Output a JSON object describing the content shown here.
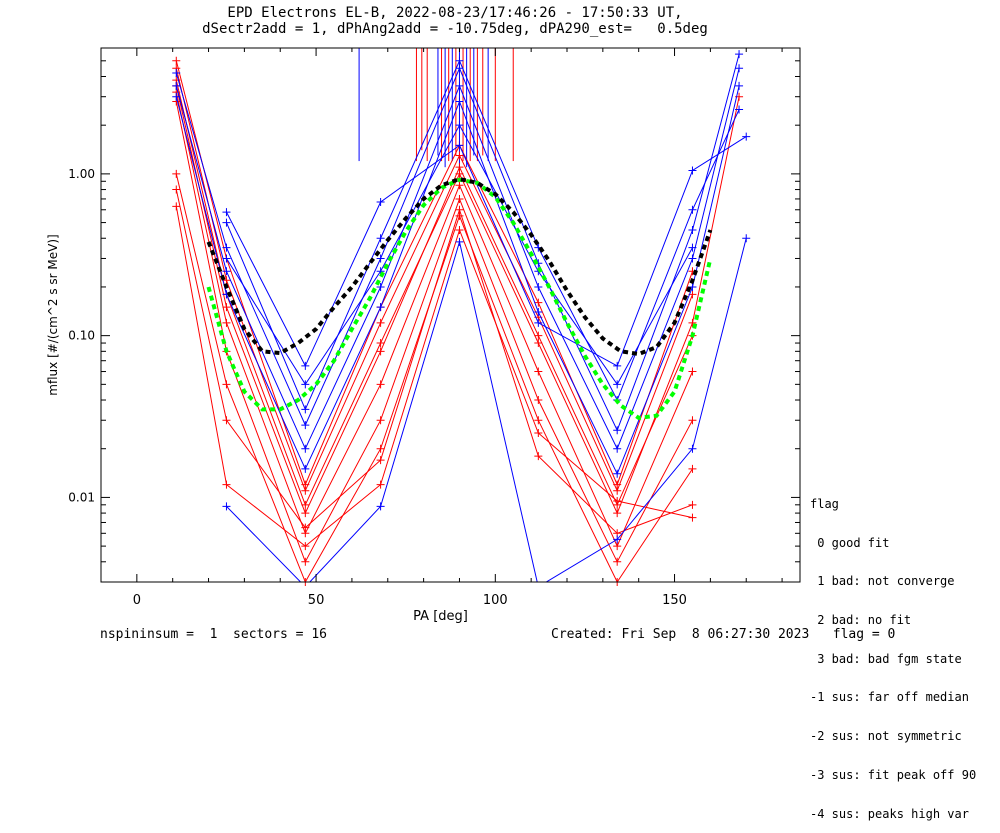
{
  "title_line1": "EPD Electrons EL-B, 2022-08-23/17:46:26 - 17:50:33 UT,",
  "title_line2": "dSectr2add = 1, dPhAng2add = -10.75deg, dPA290_est=   0.5deg",
  "legend": {
    "heading": "flag",
    "items": [
      " 0 good fit",
      " 1 bad: not converge",
      " 2 bad: no fit",
      " 3 bad: bad fgm state",
      "-1 sus: far off median",
      "-2 sus: not symmetric",
      "-3 sus: fit peak off 90",
      "-4 sus: peaks high var"
    ]
  },
  "footer_left": "nspininsum =  1  sectors = 16",
  "footer_right": "Created: Fri Sep  8 06:27:30 2023   flag = 0",
  "colors": {
    "red": "#ff0000",
    "blue": "#0000ff",
    "green": "#00ff00",
    "black": "#000000"
  },
  "chart_data": {
    "type": "line",
    "xlabel": "PA [deg]",
    "ylabel": "mflux [#/(cm^2 s sr MeV)]",
    "xlim": [
      -10,
      185
    ],
    "ylim": [
      0.003,
      6.0
    ],
    "yscale": "log",
    "xticks": [
      0,
      50,
      100,
      150
    ],
    "xtick_labels": [
      "0",
      "50",
      "100",
      "150"
    ],
    "yticks": [
      0.01,
      0.1,
      1.0
    ],
    "ytick_labels": [
      "0.01",
      "0.10",
      "1.00"
    ],
    "series": [
      {
        "color": "red",
        "x": [
          11,
          25,
          47,
          68,
          90,
          112,
          134,
          155,
          168
        ],
        "y": [
          3.8,
          0.18,
          0.009,
          0.09,
          1.0,
          0.09,
          0.008,
          0.12,
          3.0
        ]
      },
      {
        "color": "red",
        "x": [
          11,
          25,
          47,
          68,
          90,
          112,
          134,
          155
        ],
        "y": [
          3.2,
          0.12,
          0.006,
          0.05,
          0.85,
          0.06,
          0.005,
          0.06
        ]
      },
      {
        "color": "red",
        "x": [
          11,
          25,
          47,
          68,
          90,
          112,
          134,
          155
        ],
        "y": [
          4.5,
          0.22,
          0.011,
          0.12,
          1.3,
          0.13,
          0.011,
          0.18
        ]
      },
      {
        "color": "red",
        "x": [
          11,
          25,
          47,
          68,
          90,
          112,
          134,
          155
        ],
        "y": [
          2.8,
          0.08,
          0.004,
          0.03,
          0.7,
          0.04,
          0.004,
          0.03
        ]
      },
      {
        "color": "red",
        "x": [
          11,
          25,
          47,
          68,
          90,
          112,
          134,
          155
        ],
        "y": [
          3.5,
          0.15,
          0.008,
          0.08,
          1.1,
          0.1,
          0.009,
          0.1
        ]
      },
      {
        "color": "red",
        "x": [
          11,
          25,
          47,
          68,
          90,
          112,
          134,
          155
        ],
        "y": [
          5.0,
          0.3,
          0.012,
          0.15,
          1.5,
          0.16,
          0.012,
          0.25
        ]
      },
      {
        "color": "red",
        "x": [
          11,
          25,
          47,
          68,
          90,
          112,
          134,
          155
        ],
        "y": [
          1.0,
          0.05,
          0.003,
          0.02,
          0.55,
          0.03,
          0.003,
          0.015
        ]
      },
      {
        "color": "red",
        "x": [
          11,
          25,
          47,
          68,
          90,
          112,
          134,
          155
        ],
        "y": [
          0.63,
          0.012,
          0.005,
          0.012,
          0.45,
          0.025,
          0.0095,
          0.0075
        ]
      },
      {
        "color": "red",
        "x": [
          11,
          25,
          47,
          68,
          90,
          112,
          134,
          155
        ],
        "y": [
          0.8,
          0.03,
          0.0065,
          0.017,
          0.6,
          0.018,
          0.006,
          0.009
        ]
      },
      {
        "color": "blue",
        "x": [
          11,
          25,
          47,
          68,
          90,
          112,
          134,
          155,
          168
        ],
        "y": [
          3.5,
          0.25,
          0.02,
          0.2,
          3.5,
          0.2,
          0.02,
          0.3,
          4.5
        ]
      },
      {
        "color": "blue",
        "x": [
          11,
          25,
          47,
          68,
          90,
          112,
          134,
          155,
          168
        ],
        "y": [
          4.2,
          0.35,
          0.028,
          0.3,
          4.5,
          0.28,
          0.026,
          0.45,
          5.5
        ]
      },
      {
        "color": "blue",
        "x": [
          11,
          25,
          47,
          68,
          90,
          112,
          134,
          155,
          168
        ],
        "y": [
          3.0,
          0.18,
          0.015,
          0.15,
          2.8,
          0.14,
          0.014,
          0.2,
          3.5
        ]
      },
      {
        "color": "blue",
        "x": [
          25,
          47,
          68,
          90,
          112,
          134,
          155,
          168
        ],
        "y": [
          0.5,
          0.035,
          0.4,
          5.0,
          0.35,
          0.04,
          0.6,
          2.5
        ]
      },
      {
        "color": "blue",
        "x": [
          25,
          47,
          68,
          90,
          112,
          134,
          155,
          170
        ],
        "y": [
          0.58,
          0.065,
          0.67,
          1.5,
          0.12,
          0.065,
          1.05,
          1.7
        ]
      },
      {
        "color": "blue",
        "x": [
          25,
          47,
          68,
          90,
          112,
          134,
          155,
          170
        ],
        "y": [
          0.0088,
          0.0028,
          0.0088,
          0.38,
          0.0028,
          0.0055,
          0.02,
          0.4
        ]
      },
      {
        "color": "blue",
        "x": [
          25,
          47,
          68,
          90,
          112,
          134,
          155
        ],
        "y": [
          0.3,
          0.05,
          0.25,
          2.0,
          0.25,
          0.05,
          0.35
        ]
      }
    ],
    "fit_curves": [
      {
        "color": "green",
        "x": [
          20,
          25,
          30,
          35,
          40,
          45,
          50,
          55,
          60,
          65,
          70,
          75,
          80,
          85,
          90,
          95,
          100,
          105,
          110,
          115,
          120,
          125,
          130,
          135,
          140,
          145,
          150,
          155,
          160
        ],
        "y": [
          0.2,
          0.08,
          0.045,
          0.035,
          0.035,
          0.04,
          0.05,
          0.07,
          0.11,
          0.17,
          0.28,
          0.44,
          0.64,
          0.82,
          0.92,
          0.88,
          0.72,
          0.5,
          0.32,
          0.2,
          0.12,
          0.075,
          0.05,
          0.037,
          0.031,
          0.032,
          0.045,
          0.1,
          0.3
        ]
      },
      {
        "color": "black",
        "x": [
          20,
          25,
          30,
          35,
          40,
          45,
          50,
          55,
          60,
          65,
          70,
          75,
          80,
          85,
          90,
          95,
          100,
          105,
          110,
          115,
          120,
          125,
          130,
          135,
          140,
          145,
          150,
          155,
          160
        ],
        "y": [
          0.38,
          0.2,
          0.11,
          0.08,
          0.078,
          0.09,
          0.11,
          0.15,
          0.2,
          0.28,
          0.39,
          0.53,
          0.7,
          0.85,
          0.93,
          0.88,
          0.75,
          0.58,
          0.42,
          0.29,
          0.19,
          0.13,
          0.096,
          0.08,
          0.077,
          0.085,
          0.12,
          0.22,
          0.45
        ]
      }
    ],
    "vlines": [
      {
        "color": "blue",
        "x": 62,
        "y0": 1.2
      },
      {
        "color": "red",
        "x": 78,
        "y0": 1.2
      },
      {
        "color": "red",
        "x": 79.5,
        "y0": 1.4
      },
      {
        "color": "red",
        "x": 81,
        "y0": 1.2
      },
      {
        "color": "blue",
        "x": 84,
        "y0": 1.3
      },
      {
        "color": "red",
        "x": 85,
        "y0": 1.2
      },
      {
        "color": "blue",
        "x": 86,
        "y0": 1.1
      },
      {
        "color": "red",
        "x": 87,
        "y0": 1.2
      },
      {
        "color": "blue",
        "x": 88,
        "y0": 1.2
      },
      {
        "color": "red",
        "x": 89,
        "y0": 1.3
      },
      {
        "color": "blue",
        "x": 90,
        "y0": 1.0
      },
      {
        "color": "red",
        "x": 91,
        "y0": 1.2
      },
      {
        "color": "blue",
        "x": 92,
        "y0": 1.1
      },
      {
        "color": "red",
        "x": 93,
        "y0": 1.2
      },
      {
        "color": "blue",
        "x": 94,
        "y0": 1.3
      },
      {
        "color": "red",
        "x": 95,
        "y0": 1.2
      },
      {
        "color": "red",
        "x": 96.5,
        "y0": 1.3
      },
      {
        "color": "blue",
        "x": 98,
        "y0": 1.2
      },
      {
        "color": "red",
        "x": 100,
        "y0": 1.2
      },
      {
        "color": "red",
        "x": 105,
        "y0": 1.2
      }
    ]
  }
}
